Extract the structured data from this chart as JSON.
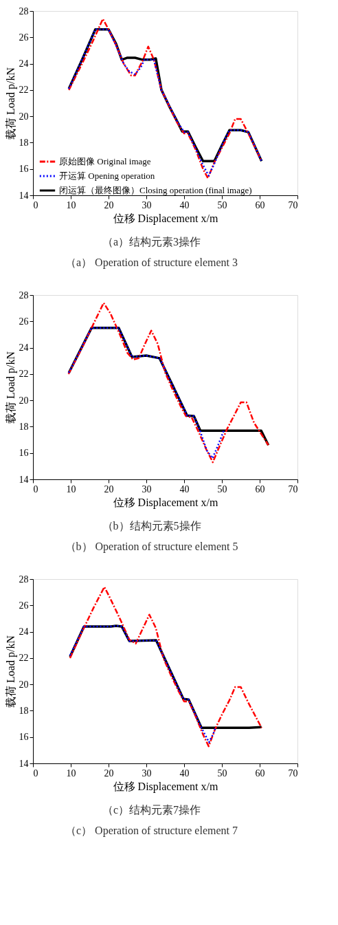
{
  "chart_data": [
    {
      "type": "line",
      "xlabel": "位移 Displacement x/m",
      "ylabel": "载荷 Load p/kN",
      "xlim": [
        0,
        70
      ],
      "ylim": [
        14,
        28
      ],
      "xticks": [
        0,
        10,
        20,
        30,
        40,
        50,
        60,
        70
      ],
      "yticks": [
        14,
        16,
        18,
        20,
        22,
        24,
        26,
        28
      ],
      "grid": false,
      "legend": "bottom left",
      "annotations": [
        "（a）结构元素3操作",
        "（a） Operation of structure element 3"
      ],
      "series": [
        {
          "name": "原始图像 Original image",
          "color": "#ff0000",
          "line_style": "dashdot",
          "x": [
            9.5,
            13,
            16,
            18.5,
            20,
            22,
            24,
            26,
            27,
            29,
            30.5,
            32,
            34,
            36,
            38,
            40,
            41,
            43,
            45,
            46.3,
            48,
            50,
            52,
            53.5,
            55,
            57,
            60.5
          ],
          "values": [
            22.0,
            24.0,
            25.8,
            27.4,
            26.6,
            25.4,
            24.0,
            23.1,
            23.1,
            24.2,
            25.3,
            24.3,
            22.0,
            20.8,
            19.6,
            18.7,
            18.7,
            17.5,
            16.0,
            15.3,
            16.5,
            17.6,
            18.7,
            19.8,
            19.8,
            18.7,
            16.6
          ]
        },
        {
          "name": "开运算 Opening operation",
          "color": "#0000ff",
          "line_style": "dotted",
          "x": [
            9.5,
            13,
            16.5,
            20,
            22,
            24,
            25.5,
            27,
            28.5,
            29.5,
            32,
            34,
            38,
            40,
            41,
            43,
            45,
            46.5,
            48,
            50,
            52,
            55,
            57,
            60.5
          ],
          "values": [
            22.1,
            24.3,
            26.6,
            26.6,
            25.4,
            24.0,
            23.4,
            23.2,
            23.7,
            24.3,
            24.3,
            22.0,
            19.7,
            18.8,
            18.8,
            17.6,
            16.3,
            15.5,
            16.4,
            17.8,
            18.95,
            18.95,
            18.8,
            16.6
          ]
        },
        {
          "name": "闭运算（最终图像）Closing operation (final image)",
          "color": "#000000",
          "line_style": "solid",
          "x": [
            9.5,
            13,
            16.5,
            20,
            22,
            23.5,
            25,
            27,
            29,
            31,
            32.5,
            34,
            36,
            38,
            39.5,
            41,
            43,
            45,
            48,
            50,
            52,
            55,
            57,
            60.5
          ],
          "values": [
            22.1,
            24.3,
            26.6,
            26.6,
            25.5,
            24.3,
            24.45,
            24.45,
            24.3,
            24.3,
            24.4,
            22.0,
            20.8,
            19.7,
            18.85,
            18.85,
            17.7,
            16.6,
            16.6,
            17.8,
            18.95,
            18.95,
            18.8,
            16.6
          ]
        }
      ]
    },
    {
      "type": "line",
      "xlabel": "位移 Displacement x/m",
      "ylabel": "载荷 Load p/kN",
      "xlim": [
        0,
        70
      ],
      "ylim": [
        14,
        28
      ],
      "xticks": [
        0,
        10,
        20,
        30,
        40,
        50,
        60,
        70
      ],
      "yticks": [
        14,
        16,
        18,
        20,
        22,
        24,
        26,
        28
      ],
      "grid": false,
      "legend": "bottom left",
      "annotations": [
        "（b）结构元素5操作",
        "（b） Operation of structure element 5"
      ],
      "series": [
        {
          "name": "原始图像 Original image",
          "color": "#ff0000",
          "line_style": "dashdot",
          "x": [
            9.4,
            13,
            16,
            18.7,
            20.5,
            23,
            25,
            26.5,
            28,
            29.5,
            31.3,
            33,
            35,
            37,
            39,
            40.5,
            42,
            44,
            46,
            47.6,
            49.5,
            51.5,
            53.5,
            55,
            56.5,
            58.5,
            62.3
          ],
          "values": [
            22.0,
            24.0,
            25.8,
            27.4,
            26.6,
            25.0,
            23.6,
            23.1,
            23.2,
            24.2,
            25.3,
            24.3,
            22.1,
            20.8,
            19.6,
            18.8,
            18.7,
            17.5,
            16.2,
            15.3,
            16.6,
            17.9,
            19.0,
            19.85,
            19.85,
            18.3,
            16.6
          ]
        },
        {
          "name": "开运算 Opening operation",
          "color": "#0000ff",
          "line_style": "dotted",
          "x": [
            9.5,
            15.5,
            22.7,
            26.2,
            30,
            33.5,
            40.8,
            42.6,
            44.2,
            46,
            47.5,
            49,
            50.5
          ],
          "values": [
            22.1,
            25.5,
            25.5,
            23.3,
            23.4,
            23.2,
            18.85,
            18.8,
            17.7,
            16.2,
            15.6,
            16.6,
            17.7
          ]
        },
        {
          "name": "闭运算（最终图像）Closing operation (final image)",
          "color": "#000000",
          "line_style": "solid",
          "x": [
            9.5,
            15.5,
            22.7,
            26.2,
            30,
            33.5,
            40.8,
            42.6,
            44.3,
            60.4,
            62.3
          ],
          "values": [
            22.1,
            25.5,
            25.5,
            23.3,
            23.4,
            23.2,
            18.85,
            18.8,
            17.7,
            17.7,
            16.6
          ]
        }
      ]
    },
    {
      "type": "line",
      "xlabel": "位移 Displacement x/m",
      "ylabel": "载荷 Load p/kN",
      "xlim": [
        0,
        70
      ],
      "ylim": [
        14,
        28
      ],
      "xticks": [
        0,
        10,
        20,
        30,
        40,
        50,
        60,
        70
      ],
      "yticks": [
        14,
        16,
        18,
        20,
        22,
        24,
        26,
        28
      ],
      "grid": false,
      "legend": "bottom left",
      "annotations": [
        "（c）结构元素7操作",
        "（c） Operation of structure element 7"
      ],
      "series": [
        {
          "name": "原始图像 Original image",
          "color": "#ff0000",
          "line_style": "dashdot",
          "x": [
            9.8,
            13,
            16,
            18.9,
            20.5,
            23,
            25.5,
            27.2,
            29,
            30.8,
            32.5,
            34.5,
            36.5,
            38.5,
            40,
            41.3,
            43,
            45,
            46.5,
            48.2,
            50,
            52,
            53.5,
            55,
            57,
            60.5
          ],
          "values": [
            22.0,
            24.0,
            25.8,
            27.4,
            26.5,
            25.0,
            23.4,
            23.1,
            24.2,
            25.3,
            24.3,
            22.0,
            20.7,
            19.5,
            18.7,
            18.7,
            17.6,
            16.2,
            15.3,
            16.6,
            17.7,
            18.8,
            19.8,
            19.8,
            18.6,
            16.7
          ]
        },
        {
          "name": "开运算 Opening operation",
          "color": "#0000ff",
          "line_style": "dotted",
          "x": [
            9.8,
            13.5,
            20.6,
            22,
            23.5,
            25.5,
            32.6,
            39.8,
            41.2,
            44.6,
            45.5,
            46.6,
            47.8,
            48.3
          ],
          "values": [
            22.2,
            24.4,
            24.4,
            24.45,
            24.4,
            23.3,
            23.35,
            18.9,
            18.85,
            16.7,
            16.2,
            15.6,
            16.3,
            16.7
          ]
        },
        {
          "name": "闭运算（最终图像）Closing operation (final image)",
          "color": "#000000",
          "line_style": "solid",
          "x": [
            9.8,
            13.5,
            20.6,
            22,
            23.5,
            25.5,
            32.6,
            39.8,
            41.2,
            44.6,
            57.2,
            60.5
          ],
          "values": [
            22.1,
            24.4,
            24.4,
            24.45,
            24.4,
            23.3,
            23.35,
            18.9,
            18.85,
            16.7,
            16.7,
            16.75
          ]
        }
      ]
    }
  ]
}
